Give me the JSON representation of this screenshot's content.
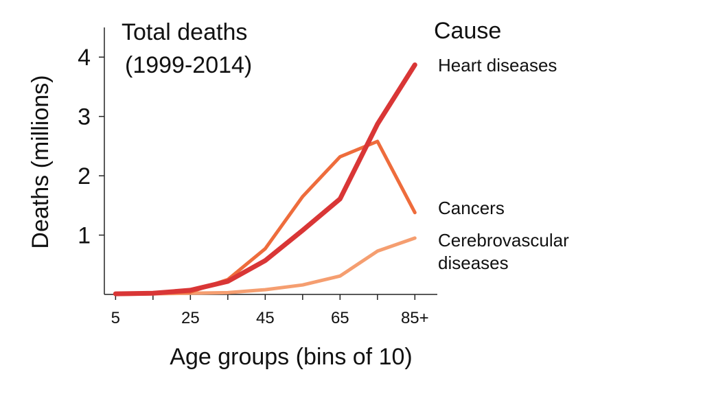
{
  "chart_data": {
    "type": "line",
    "title": "",
    "annotation": [
      "Total deaths",
      "(1999-2014)"
    ],
    "xlabel": "Age groups (bins of 10)",
    "ylabel": "Deaths (millions)",
    "x": [
      5,
      15,
      25,
      35,
      45,
      55,
      65,
      75,
      85
    ],
    "x_tick_labels": [
      "5",
      "25",
      "45",
      "65",
      "85+"
    ],
    "x_tick_values": [
      5,
      25,
      45,
      65,
      85
    ],
    "y_ticks": [
      1,
      2,
      3,
      4
    ],
    "ylim": [
      0,
      4.5
    ],
    "xlim": [
      2,
      91
    ],
    "grid": false,
    "legend_title": "Cause",
    "series": [
      {
        "name": "Heart diseases",
        "label_lines": [
          "Heart diseases"
        ],
        "color": "#d93636",
        "values": [
          0.01,
          0.02,
          0.07,
          0.22,
          0.57,
          1.08,
          1.61,
          2.87,
          3.87
        ]
      },
      {
        "name": "Cancers",
        "label_lines": [
          "Cancers"
        ],
        "color": "#ee6c3c",
        "values": [
          0.01,
          0.02,
          0.04,
          0.25,
          0.77,
          1.65,
          2.32,
          2.58,
          1.38
        ]
      },
      {
        "name": "Cerebrovascular diseases",
        "label_lines": [
          "Cerebrovascular",
          "diseases"
        ],
        "color": "#f59e70",
        "values": [
          0.0,
          0.01,
          0.02,
          0.03,
          0.08,
          0.16,
          0.31,
          0.73,
          0.95
        ]
      }
    ]
  }
}
